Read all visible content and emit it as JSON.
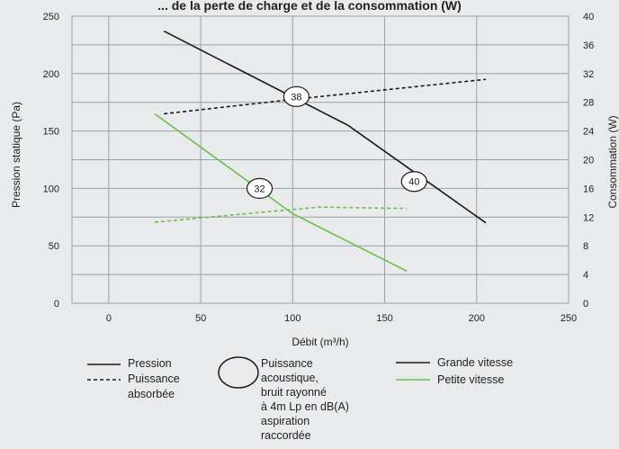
{
  "chart_data": {
    "type": "line",
    "title_fragment": "... de la perte de charge et de la consommation (W)",
    "xlabel": "Débit (m³/h)",
    "ylabel_left": "Pression statique (Pa)",
    "ylabel_right": "Consommation (W)",
    "xlim": [
      -20,
      250
    ],
    "xticks": [
      0,
      50,
      100,
      150,
      200,
      250
    ],
    "ylim_left": [
      0,
      250
    ],
    "yticks_left": [
      0,
      50,
      100,
      150,
      200,
      250
    ],
    "ylim_right": [
      0,
      40
    ],
    "yticks_right": [
      0,
      4,
      8,
      12,
      16,
      20,
      24,
      28,
      32,
      36,
      40
    ],
    "grid": true,
    "series": [
      {
        "name": "Pression — Grande vitesse",
        "axis": "left",
        "style": "solid",
        "color": "#1a1a1a",
        "points": [
          [
            30,
            237
          ],
          [
            130,
            155
          ],
          [
            205,
            70
          ]
        ]
      },
      {
        "name": "Puissance absorbée — Grande vitesse",
        "axis": "right",
        "style": "dashed",
        "color": "#1a1a1a",
        "points": [
          [
            30,
            26.4
          ],
          [
            100,
            28.4
          ],
          [
            205,
            31.2
          ]
        ]
      },
      {
        "name": "Pression — Petite vitesse",
        "axis": "left",
        "style": "solid",
        "color": "#6cbf4a",
        "points": [
          [
            25,
            165
          ],
          [
            100,
            78
          ],
          [
            162,
            28
          ]
        ]
      },
      {
        "name": "Puissance absorbée — Petite vitesse",
        "axis": "right",
        "style": "dashed",
        "color": "#6cbf4a",
        "points": [
          [
            25,
            11.3
          ],
          [
            80,
            12.6
          ],
          [
            115,
            13.4
          ],
          [
            162,
            13.2
          ]
        ]
      }
    ],
    "acoustic_labels": [
      {
        "text": "38",
        "x": 102,
        "y": 180
      },
      {
        "text": "32",
        "x": 82,
        "y": 100
      },
      {
        "text": "40",
        "x": 166,
        "y": 106
      }
    ],
    "legend": {
      "line_styles": [
        {
          "label": "Pression",
          "style": "solid"
        },
        {
          "label": "Puissance absorbée",
          "style": "dashed"
        }
      ],
      "circle_label": "Puissance acoustique, bruit rayonné à 4m Lp en dB(A) aspiration raccordée",
      "colors": [
        {
          "label": "Grande vitesse",
          "color": "#1a1a1a"
        },
        {
          "label": "Petite vitesse",
          "color": "#6cbf4a"
        }
      ]
    }
  },
  "legend_text": {
    "pression": "Pression",
    "puissance": "Puissance",
    "absorbee": "absorbée",
    "acoustic_lines": [
      "Puissance",
      "acoustique,",
      "bruit rayonné",
      "à 4m Lp en dB(A)",
      "aspiration",
      "raccordée"
    ],
    "grande": "Grande vitesse",
    "petite": "Petite vitesse"
  }
}
